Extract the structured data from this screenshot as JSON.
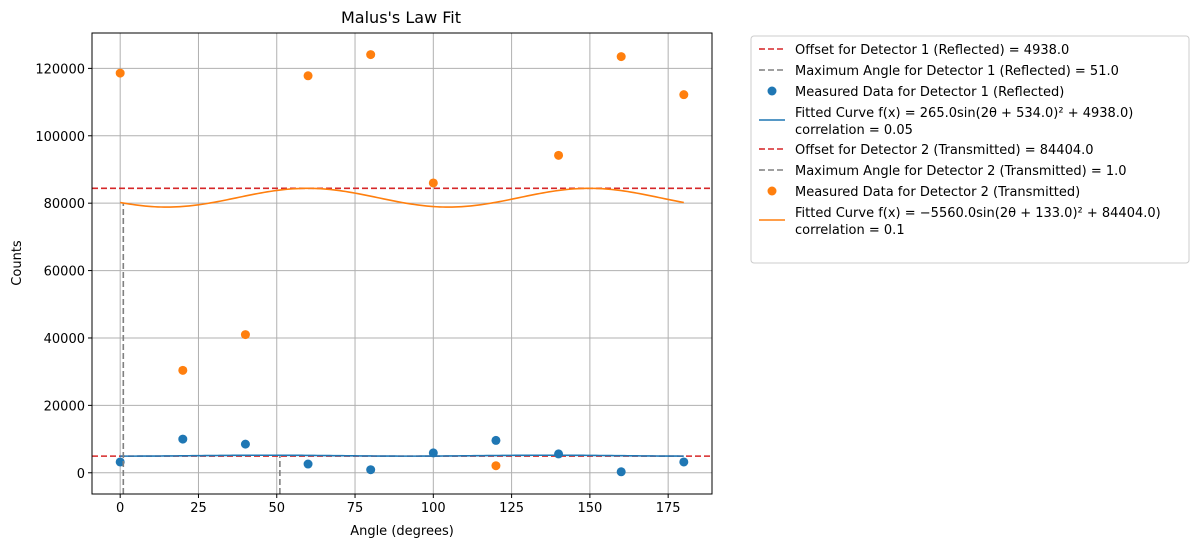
{
  "chart_data": {
    "type": "scatter",
    "title": "Malus's Law Fit",
    "xlabel": "Angle (degrees)",
    "ylabel": "Counts",
    "xlim": [
      -9,
      189
    ],
    "ylim": [
      -6300,
      130500
    ],
    "xticks": [
      0,
      25,
      50,
      75,
      100,
      125,
      150,
      175
    ],
    "yticks": [
      0,
      20000,
      40000,
      60000,
      80000,
      100000,
      120000
    ],
    "grid": true,
    "legend_position": "outside-right",
    "colors": {
      "detector1": "#1f77b4",
      "detector2": "#ff7f0e",
      "offset": "#d62728",
      "max_angle": "#808080",
      "grid": "#b0b0b0"
    },
    "detector1": {
      "offset": 4938.0,
      "max_angle": 51.0,
      "fit": {
        "amplitude": 265.0,
        "phase": 534.0,
        "offset": 4938.0
      },
      "measured": [
        {
          "x": 0,
          "y": 3200
        },
        {
          "x": 20,
          "y": 10000
        },
        {
          "x": 40,
          "y": 8500
        },
        {
          "x": 60,
          "y": 2600
        },
        {
          "x": 80,
          "y": 900
        },
        {
          "x": 100,
          "y": 5900
        },
        {
          "x": 120,
          "y": 9600
        },
        {
          "x": 140,
          "y": 5600
        },
        {
          "x": 160,
          "y": 300
        },
        {
          "x": 180,
          "y": 3200
        }
      ]
    },
    "detector2": {
      "offset": 84404.0,
      "max_angle": 1.0,
      "fit": {
        "amplitude": -5560.0,
        "phase": 133.0,
        "offset": 84404.0
      },
      "measured": [
        {
          "x": 0,
          "y": 118600
        },
        {
          "x": 20,
          "y": 30400
        },
        {
          "x": 40,
          "y": 41000
        },
        {
          "x": 60,
          "y": 117800
        },
        {
          "x": 80,
          "y": 124100
        },
        {
          "x": 100,
          "y": 86000
        },
        {
          "x": 120,
          "y": 2100
        },
        {
          "x": 140,
          "y": 94200
        },
        {
          "x": 160,
          "y": 123500
        },
        {
          "x": 180,
          "y": 112200
        }
      ]
    },
    "legend": [
      {
        "kind": "dash",
        "color": "#d62728",
        "lines": [
          "Offset for Detector 1 (Reflected) = 4938.0"
        ]
      },
      {
        "kind": "dash",
        "color": "#808080",
        "lines": [
          "Maximum Angle for Detector 1 (Reflected) = 51.0"
        ]
      },
      {
        "kind": "dot",
        "color": "#1f77b4",
        "lines": [
          "Measured Data for Detector 1 (Reflected)"
        ]
      },
      {
        "kind": "line",
        "color": "#1f77b4",
        "lines": [
          "Fitted Curve f(x) = 265.0sin(2θ + 534.0)² + 4938.0)",
          " correlation = 0.05"
        ]
      },
      {
        "kind": "dash",
        "color": "#d62728",
        "lines": [
          "Offset for Detector 2 (Transmitted) = 84404.0"
        ]
      },
      {
        "kind": "dash",
        "color": "#808080",
        "lines": [
          "Maximum Angle for Detector 2 (Transmitted) = 1.0"
        ]
      },
      {
        "kind": "dot",
        "color": "#ff7f0e",
        "lines": [
          "Measured Data for Detector 2 (Transmitted)"
        ]
      },
      {
        "kind": "line",
        "color": "#ff7f0e",
        "lines": [
          "Fitted Curve f(x) = −5560.0sin(2θ + 133.0)² + 84404.0)",
          " correlation = 0.1"
        ]
      }
    ]
  }
}
